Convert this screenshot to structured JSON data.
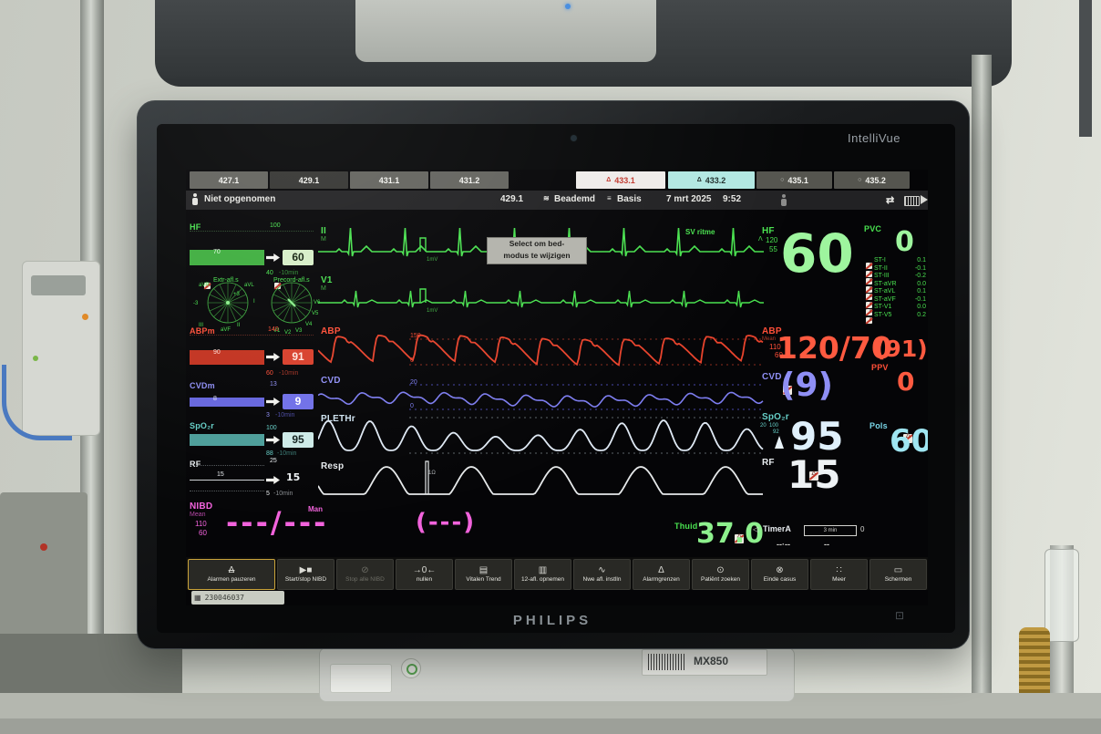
{
  "device": {
    "product": "IntelliVue",
    "brand": "PHILIPS",
    "model": "MX850",
    "badge": "230046037"
  },
  "colors": {
    "ecg_green": "#49e14f",
    "abp_red": "#ff4f38",
    "cvd_blue": "#8585f0",
    "spo2_white": "#dfe9f4",
    "pols_cyan": "#79d7e8",
    "nibd_magenta": "#f263dc",
    "temp_green": "#8df08d"
  },
  "tabs": [
    "427.1",
    "429.1",
    "431.1",
    "431.2",
    "433.1",
    "433.2",
    "435.1",
    "435.2"
  ],
  "status": {
    "admission": "Niet opgenomen",
    "bed": "429.1",
    "ventilation": "Beademd",
    "profile": "Basis",
    "date": "7 mrt 2025",
    "time": "9:52"
  },
  "tooltip": {
    "line1": "Select om bed-",
    "line2": "modus te wijzigen"
  },
  "ecg": {
    "rhythm": "SV ritme",
    "lead1": "II",
    "lead1_filter": "M",
    "lead2": "V1",
    "lead2_filter": "M",
    "cal": "1mV"
  },
  "waves": {
    "abp_label": "ABP",
    "abp_high": "150",
    "abp_low": "0",
    "cvd_label": "CVD",
    "cvd_high": "20",
    "cvd_low": "0",
    "pleth_label": "PLETHr",
    "resp_label": "Resp",
    "resp_cal": "1Ω"
  },
  "trend_col": {
    "window": "-10min",
    "hf": {
      "label": "HF",
      "high": "100",
      "bar": "70",
      "value": "60",
      "low": "40"
    },
    "stmap": {
      "left_title": "Extr-afl.s",
      "right_title": "Precord-afl.s",
      "range_neg": "-3",
      "range_pos": "+3",
      "left_leads": [
        "aVR",
        "aVL",
        "I",
        "II",
        "aVF",
        "III"
      ],
      "right_leads": [
        "V1",
        "V2",
        "V3",
        "V4",
        "V5",
        "V6"
      ]
    },
    "abpm": {
      "label": "ABPm",
      "high": "140",
      "bar": "90",
      "value": "91",
      "low": "60"
    },
    "cvdm": {
      "label": "CVDm",
      "high": "13",
      "bar": "8",
      "value": "9",
      "low": "3"
    },
    "spo2": {
      "label": "SpO₂r",
      "high": "100",
      "value": "95",
      "low": "88"
    },
    "rf": {
      "label": "RF",
      "high": "25",
      "bar": "15",
      "value": "15",
      "low": "5"
    }
  },
  "numerics": {
    "hf": {
      "label": "HF",
      "limit_high": "120",
      "limit_low": "55",
      "value": "60"
    },
    "pvc": {
      "label": "PVC",
      "value": "0"
    },
    "st_rows": [
      {
        "label": "ST-I",
        "value": "0.1"
      },
      {
        "label": "ST-II",
        "value": "-0.1"
      },
      {
        "label": "ST-III",
        "value": "-0.2"
      },
      {
        "label": "ST-aVR",
        "value": "0.0"
      },
      {
        "label": "ST-aVL",
        "value": "0.1"
      },
      {
        "label": "ST-aVF",
        "value": "-0.1"
      },
      {
        "label": "ST-V1",
        "value": "0.0"
      },
      {
        "label": "ST-V5",
        "value": "0.2"
      }
    ],
    "abp": {
      "label": "ABP",
      "sub": "Mean",
      "limit_high": "110",
      "limit_low": "60",
      "value": "120/70",
      "mean": "(91)"
    },
    "ppv": {
      "label": "PPV",
      "value": "0"
    },
    "cvd": {
      "label": "CVD",
      "value": "(9)"
    },
    "pols": {
      "label": "Pols",
      "value": "60"
    },
    "spo2": {
      "label": "SpO₂r",
      "limit_extra": "20",
      "limit_high": "100",
      "limit_low": "92",
      "value": "95"
    },
    "rf": {
      "label": "RF",
      "value": "15"
    },
    "temp": {
      "label": "Thuid",
      "value": "37.0"
    },
    "timer": {
      "label": "TimerA",
      "bar_text": "3 min",
      "suffix": "0",
      "dash1": "--·--",
      "dash2": "--"
    }
  },
  "nibd": {
    "label": "NIBD",
    "sub": "Mean",
    "limit_high": "110",
    "limit_low": "60",
    "mode": "Man",
    "value": "---/---",
    "mean": "(---)"
  },
  "toolbar": [
    {
      "label": "Alarmen pauzeren"
    },
    {
      "label": "Start/stop NIBD"
    },
    {
      "label": "Stop alle NIBD",
      "disabled": true
    },
    {
      "label": "nullen"
    },
    {
      "label": "Vitalen Trend"
    },
    {
      "label": "12-afl. opnemen"
    },
    {
      "label": "Nwe afl. instlln"
    },
    {
      "label": "Alarmgrenzen"
    },
    {
      "label": "Patiënt zoeken"
    },
    {
      "label": "Einde casus"
    },
    {
      "label": "Meer"
    },
    {
      "label": "Schermen"
    }
  ]
}
